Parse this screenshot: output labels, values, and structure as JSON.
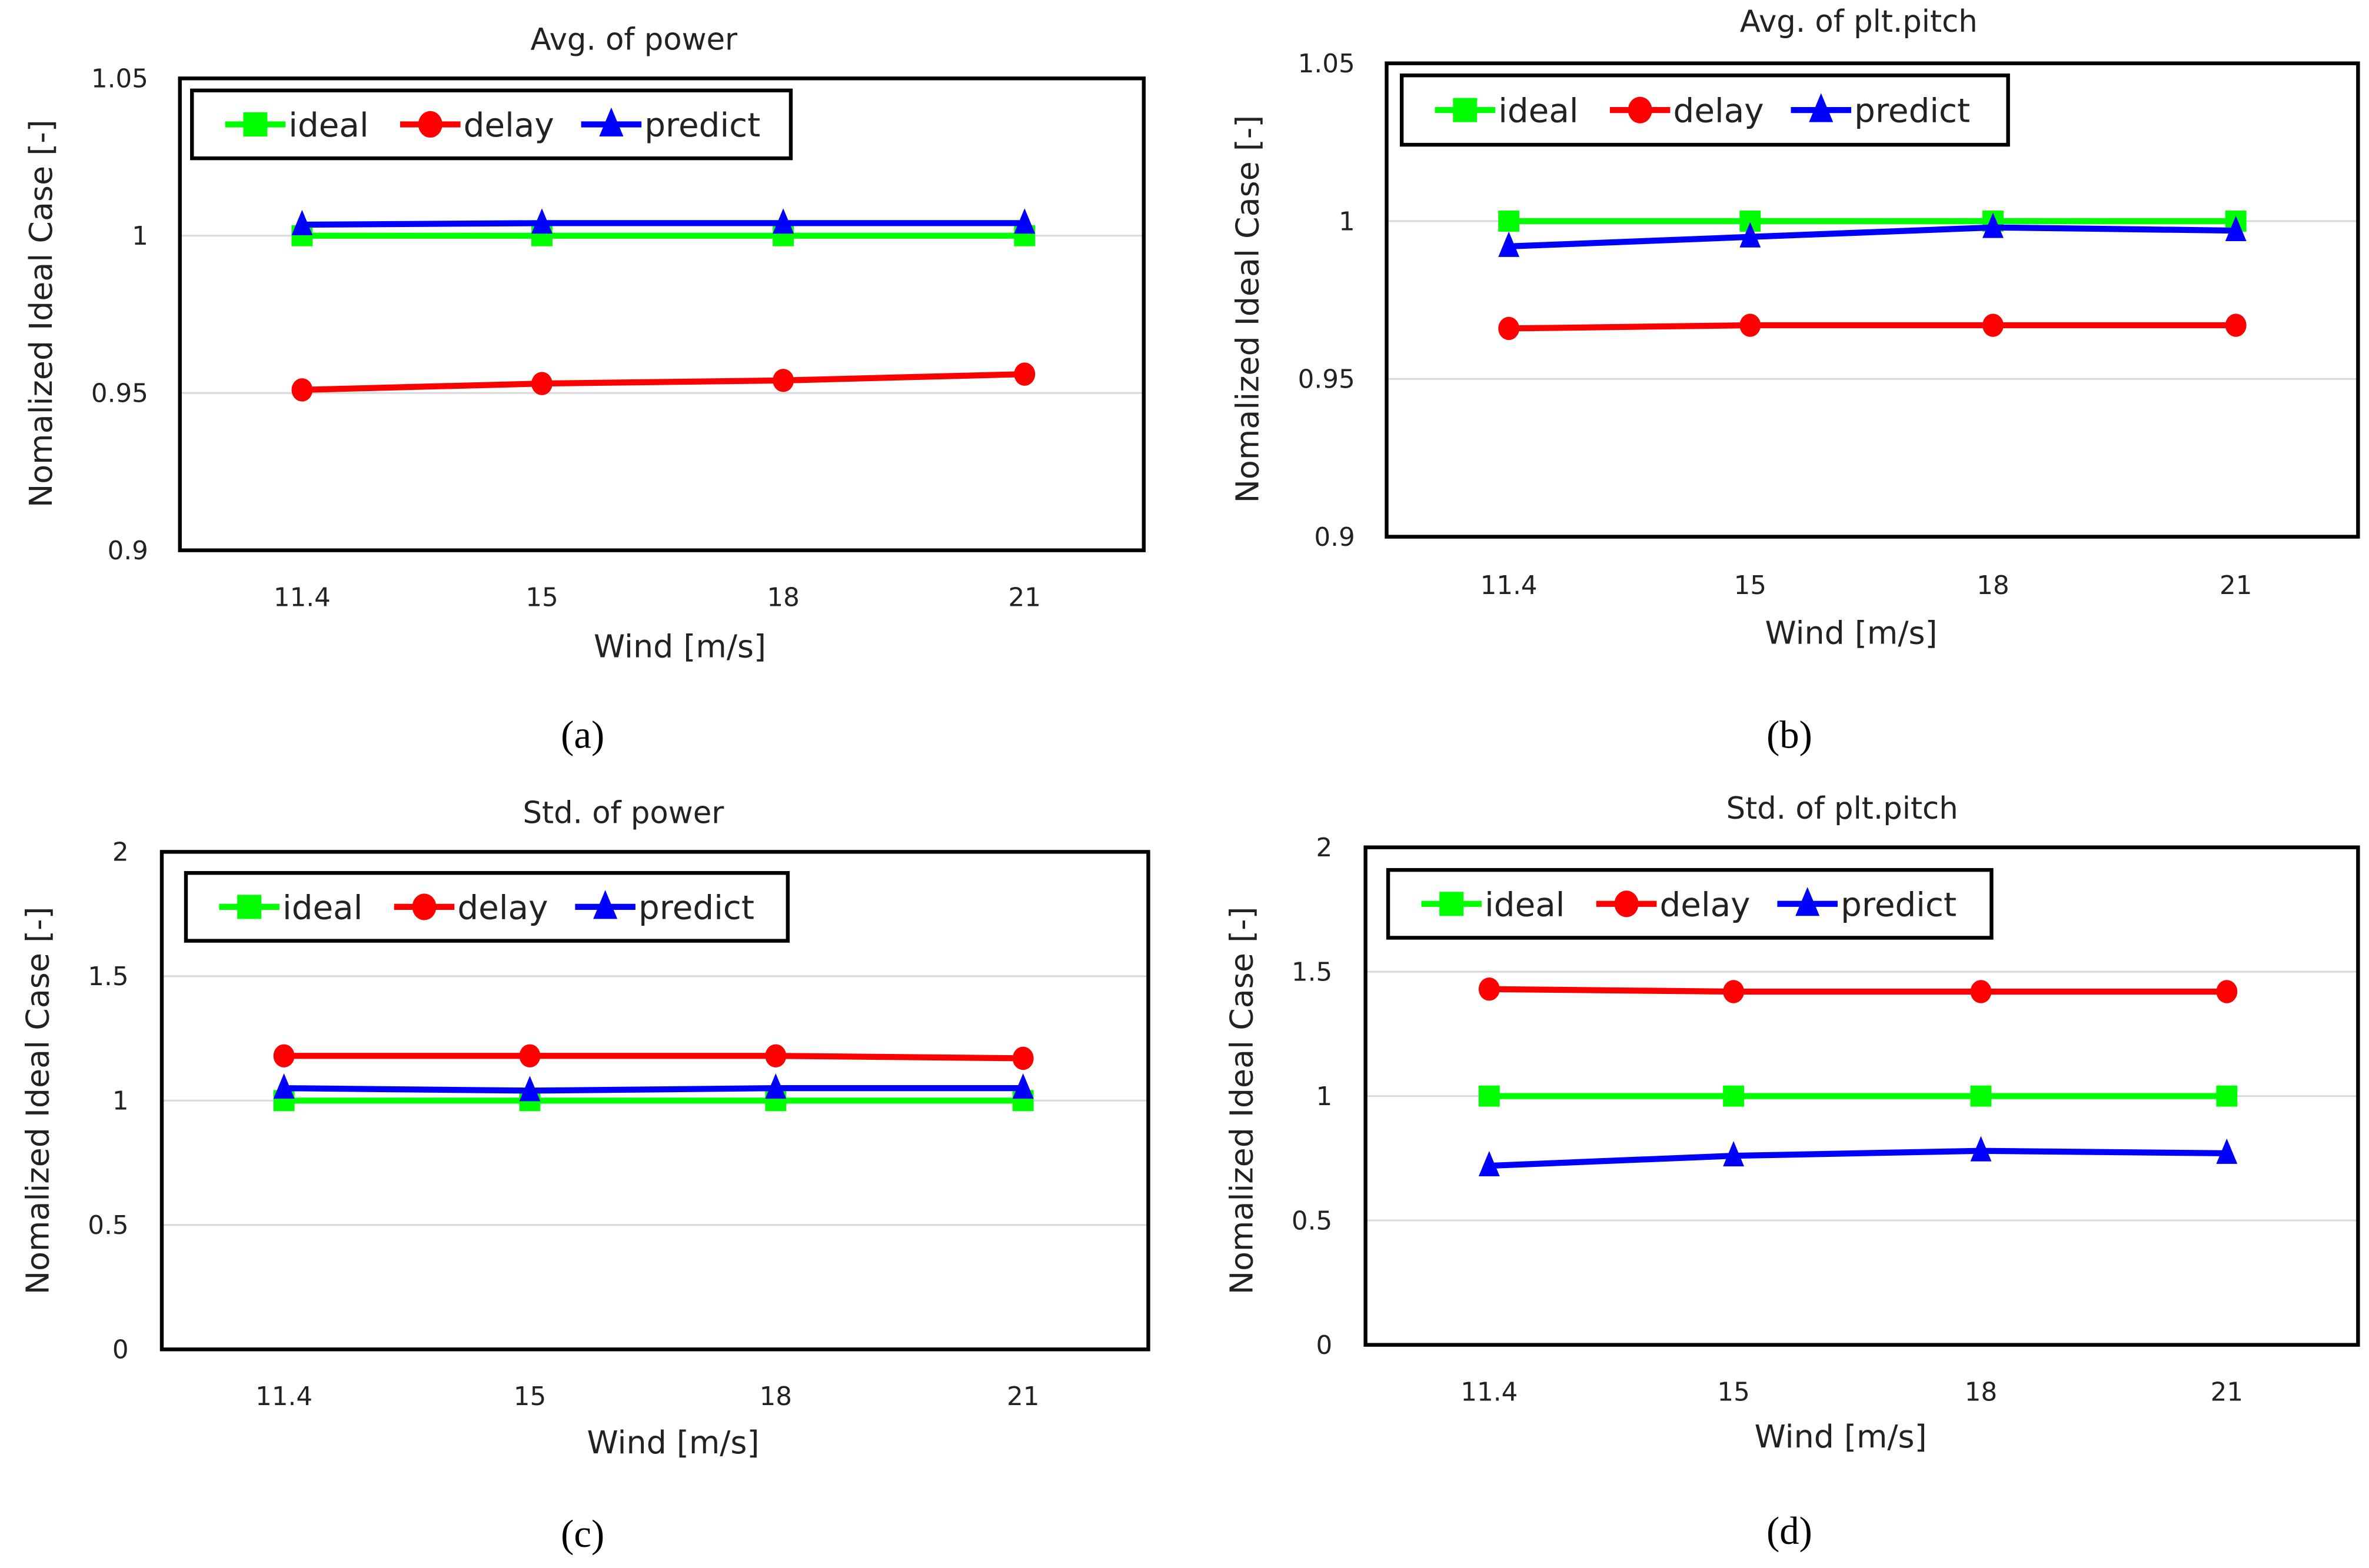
{
  "chart_data": [
    {
      "type": "line",
      "title": "Avg. of power",
      "caption": "(a)",
      "xlabel": "Wind [m/s]",
      "ylabel": "Nomalized Ideal Case [-]",
      "categories": [
        "11.4",
        "15",
        "18",
        "21"
      ],
      "ylim": [
        0.9,
        1.05
      ],
      "yticks": [
        0.9,
        0.95,
        1,
        1.05
      ],
      "ytick_labels": [
        "0.9",
        "0.95",
        "1",
        "1.05"
      ],
      "grid": true,
      "legend": "top-left",
      "series": [
        {
          "name": "ideal",
          "color": "#00ff00",
          "marker": "square",
          "values": [
            1,
            1,
            1,
            1
          ]
        },
        {
          "name": "delay",
          "color": "#ff0000",
          "marker": "circle",
          "values": [
            0.951,
            0.953,
            0.954,
            0.956
          ]
        },
        {
          "name": "predict",
          "color": "#0000ff",
          "marker": "triangle",
          "values": [
            1.0035,
            1.004,
            1.004,
            1.004
          ]
        }
      ]
    },
    {
      "type": "line",
      "title": "Avg. of plt.pitch",
      "caption": "(b)",
      "xlabel": "Wind [m/s]",
      "ylabel": "Nomalized Ideal Case [-]",
      "categories": [
        "11.4",
        "15",
        "18",
        "21"
      ],
      "ylim": [
        0.9,
        1.05
      ],
      "yticks": [
        0.9,
        0.95,
        1,
        1.05
      ],
      "ytick_labels": [
        "0.9",
        "0.95",
        "1",
        "1.05"
      ],
      "grid": true,
      "legend": "top-left",
      "series": [
        {
          "name": "ideal",
          "color": "#00ff00",
          "marker": "square",
          "values": [
            1,
            1,
            1,
            1
          ]
        },
        {
          "name": "delay",
          "color": "#ff0000",
          "marker": "circle",
          "values": [
            0.966,
            0.967,
            0.967,
            0.967
          ]
        },
        {
          "name": "predict",
          "color": "#0000ff",
          "marker": "triangle",
          "values": [
            0.992,
            0.995,
            0.998,
            0.997
          ]
        }
      ]
    },
    {
      "type": "line",
      "title": "Std. of power",
      "caption": "(c)",
      "xlabel": "Wind [m/s]",
      "ylabel": "Nomalized Ideal Case [-]",
      "categories": [
        "11.4",
        "15",
        "18",
        "21"
      ],
      "ylim": [
        0,
        2
      ],
      "yticks": [
        0,
        0.5,
        1,
        1.5,
        2
      ],
      "ytick_labels": [
        "0",
        "0.5",
        "1",
        "1.5",
        "2"
      ],
      "grid": true,
      "legend": "top-left",
      "series": [
        {
          "name": "ideal",
          "color": "#00ff00",
          "marker": "square",
          "values": [
            1,
            1,
            1,
            1
          ]
        },
        {
          "name": "delay",
          "color": "#ff0000",
          "marker": "circle",
          "values": [
            1.18,
            1.18,
            1.18,
            1.17
          ]
        },
        {
          "name": "predict",
          "color": "#0000ff",
          "marker": "triangle",
          "values": [
            1.05,
            1.04,
            1.05,
            1.05
          ]
        }
      ]
    },
    {
      "type": "line",
      "title": "Std. of plt.pitch",
      "caption": "(d)",
      "xlabel": "Wind [m/s]",
      "ylabel": "Nomalized Ideal Case [-]",
      "categories": [
        "11.4",
        "15",
        "18",
        "21"
      ],
      "ylim": [
        0,
        2
      ],
      "yticks": [
        0,
        0.5,
        1,
        1.5,
        2
      ],
      "ytick_labels": [
        "0",
        "0.5",
        "1",
        "1.5",
        "2"
      ],
      "grid": true,
      "legend": "top-left",
      "series": [
        {
          "name": "ideal",
          "color": "#00ff00",
          "marker": "square",
          "values": [
            1,
            1,
            1,
            1
          ]
        },
        {
          "name": "delay",
          "color": "#ff0000",
          "marker": "circle",
          "values": [
            1.43,
            1.42,
            1.42,
            1.42
          ]
        },
        {
          "name": "predict",
          "color": "#0000ff",
          "marker": "triangle",
          "values": [
            0.72,
            0.76,
            0.78,
            0.77
          ]
        }
      ]
    }
  ]
}
